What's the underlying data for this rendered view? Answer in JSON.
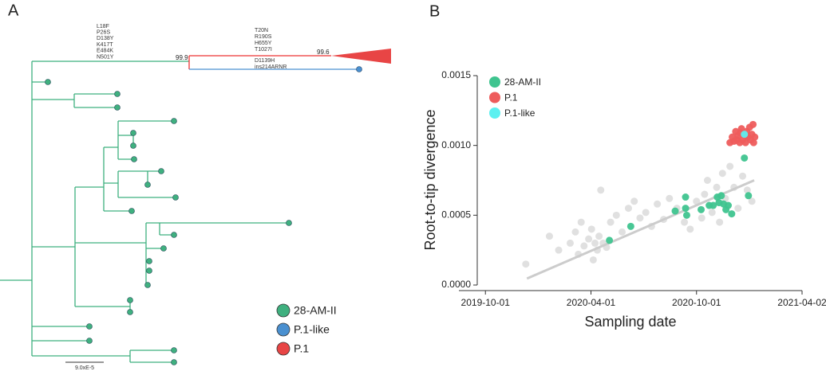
{
  "panel_a": {
    "label": "A",
    "mutations_left": [
      "L18F",
      "P26S",
      "D138Y",
      "K417T",
      "E484K",
      "N501Y"
    ],
    "mutations_right": [
      "T20N",
      "R190S",
      "H655Y",
      "T1027I"
    ],
    "mutations_below": [
      "D1139H",
      "ins214ARNR"
    ],
    "bootstrap": [
      "99.9",
      "99.6"
    ],
    "legend": [
      "28-AM-II",
      "P.1-like",
      "P.1"
    ],
    "scale": "9.0xE-5"
  },
  "panel_b_label": "B",
  "chart_data": {
    "type": "scatter",
    "x_label": "Sampling date",
    "y_label": "Root-to-tip divergence",
    "xlim": [
      "2019-08-16",
      "2021-04-02"
    ],
    "xticks": [
      "2019-10-01",
      "2020-04-01",
      "2020-10-01",
      "2021-04-02"
    ],
    "ylim": [
      0,
      0.0015
    ],
    "yticks": [
      {
        "value": 0,
        "label": "0.0000"
      },
      0.0005,
      {
        "value": 0.001,
        "label": "0.0010"
      },
      0.0015
    ],
    "trendline": {
      "color": "#cccccc",
      "x": [
        "2019-12-12",
        "2021-01-09"
      ],
      "values": [
        4.6e-05,
        0.00075
      ]
    },
    "series": [
      {
        "color": "#d3d3d3",
        "x": [
          "2019-12-10",
          "2020-01-20",
          "2020-02-05",
          "2020-02-25",
          "2020-03-05",
          "2020-03-10",
          "2020-03-15",
          "2020-03-20",
          "2020-03-28",
          "2020-04-02",
          "2020-04-05",
          "2020-04-08",
          "2020-04-12",
          "2020-04-15",
          "2020-04-18",
          "2020-04-22",
          "2020-04-28",
          "2020-05-05",
          "2020-05-15",
          "2020-05-25",
          "2020-06-05",
          "2020-06-15",
          "2020-06-25",
          "2020-07-05",
          "2020-07-15",
          "2020-07-25",
          "2020-08-05",
          "2020-08-15",
          "2020-08-28",
          "2020-09-10",
          "2020-09-20",
          "2020-10-01",
          "2020-10-10",
          "2020-10-15",
          "2020-10-20",
          "2020-10-28",
          "2020-11-05",
          "2020-11-10",
          "2020-11-15",
          "2020-11-20",
          "2020-11-28",
          "2020-12-05",
          "2020-12-12",
          "2020-12-20",
          "2020-12-28",
          "2021-01-05"
        ],
        "values": [
          0.00015,
          0.00035,
          0.00025,
          0.0003,
          0.00038,
          0.00022,
          0.00045,
          0.00028,
          0.00033,
          0.0004,
          0.00018,
          0.0003,
          0.00025,
          0.00035,
          0.00068,
          0.0003,
          0.00027,
          0.00045,
          0.0005,
          0.00038,
          0.00055,
          0.0006,
          0.00048,
          0.00052,
          0.00042,
          0.00058,
          0.00047,
          0.00062,
          0.00055,
          0.00045,
          0.0004,
          0.0006,
          0.00048,
          0.00065,
          0.00075,
          0.00052,
          0.0007,
          0.00045,
          0.0008,
          0.00062,
          0.00085,
          0.0007,
          0.00055,
          0.00078,
          0.00068,
          0.0006
        ]
      },
      {
        "name": "28-AM-II",
        "color": "#3fc48f",
        "x": [
          "2020-05-03",
          "2020-06-09",
          "2020-08-25",
          "2020-09-12",
          "2020-09-12",
          "2020-09-14",
          "2020-10-09",
          "2020-10-23",
          "2020-10-30",
          "2020-11-06",
          "2020-11-09",
          "2020-11-13",
          "2020-11-17",
          "2020-11-21",
          "2020-11-25",
          "2020-12-01",
          "2020-12-30",
          "2020-12-23",
          "2020-12-27"
        ],
        "values": [
          0.00032,
          0.00042,
          0.00053,
          0.00063,
          0.00055,
          0.0005,
          0.00054,
          0.00057,
          0.00057,
          0.00063,
          0.00059,
          0.00064,
          0.00058,
          0.00054,
          0.00057,
          0.00051,
          0.00064,
          0.00091,
          0.00107
        ]
      },
      {
        "name": "P.1",
        "color": "#ee5c5c",
        "x": [
          "2020-11-28",
          "2020-12-02",
          "2020-12-05",
          "2020-12-08",
          "2020-12-10",
          "2020-12-12",
          "2020-12-15",
          "2020-12-16",
          "2020-12-18",
          "2020-12-20",
          "2020-12-22",
          "2020-12-25",
          "2020-12-27",
          "2020-12-29",
          "2021-01-01",
          "2021-01-03",
          "2021-01-05",
          "2021-01-07",
          "2021-01-08",
          "2021-01-10"
        ],
        "values": [
          0.00102,
          0.00106,
          0.00103,
          0.0011,
          0.00104,
          0.00107,
          0.00102,
          0.00109,
          0.00112,
          0.00104,
          0.00108,
          0.00102,
          0.0011,
          0.00106,
          0.00113,
          0.00104,
          0.00108,
          0.00115,
          0.00102,
          0.00106
        ]
      },
      {
        "name": "P.1-like",
        "color": "#5cf0f0",
        "x": [
          "2020-12-23"
        ],
        "values": [
          0.00108
        ]
      }
    ]
  }
}
